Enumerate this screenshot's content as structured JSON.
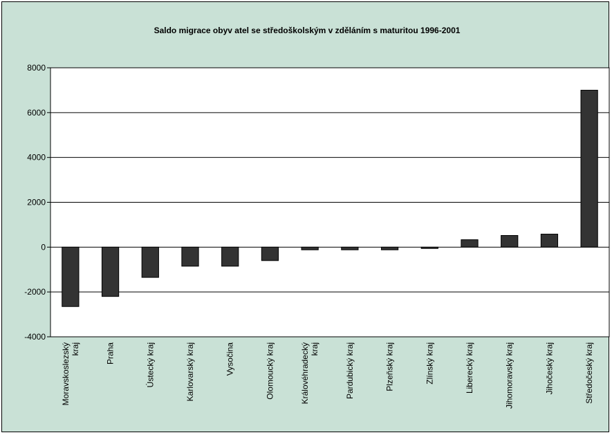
{
  "chart_data": {
    "type": "bar",
    "title": "Saldo migrace obyv atel se středoškolským v zděláním s maturitou 1996-2001",
    "xlabel": "",
    "ylabel": "",
    "ylim": [
      -4000,
      8000
    ],
    "yticks": [
      -4000,
      -2000,
      0,
      2000,
      4000,
      6000,
      8000
    ],
    "grid": true,
    "legend": "none",
    "bar_color": "#333333",
    "plot_background": "#ffffff",
    "chart_background": "#c9e1d6",
    "categories": [
      [
        "Moravskoslezský",
        "kraj"
      ],
      [
        "Praha"
      ],
      [
        "Ústecký kraj"
      ],
      [
        "Karlovarský kraj"
      ],
      [
        "Vysočina"
      ],
      [
        "Olomoucký kraj"
      ],
      [
        "Královéhradecký",
        "kraj"
      ],
      [
        "Pardubický kraj"
      ],
      [
        "Plzeňský kraj"
      ],
      [
        "Zlínský kraj"
      ],
      [
        "Liberecký kraj"
      ],
      [
        "Jihomoravský kraj"
      ],
      [
        "Jihočeský kraj"
      ],
      [
        "Středočeský kraj"
      ]
    ],
    "values": [
      -2650,
      -2200,
      -1350,
      -850,
      -850,
      -600,
      -120,
      -120,
      -120,
      -60,
      330,
      520,
      580,
      7000
    ]
  }
}
